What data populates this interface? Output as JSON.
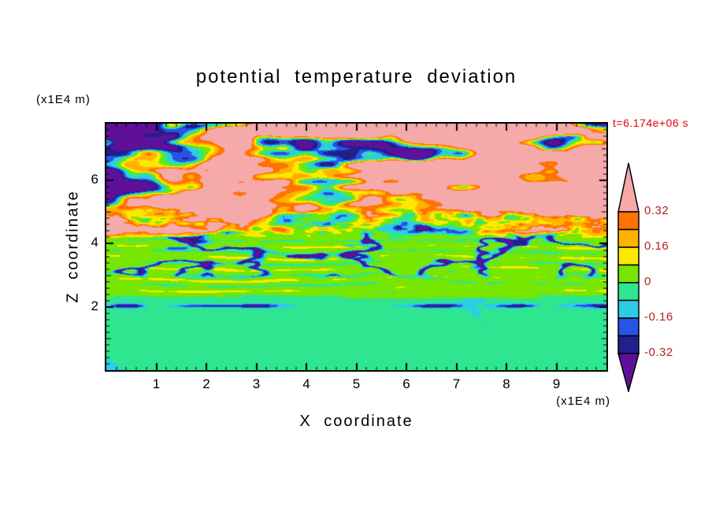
{
  "title": "potential temperature deviation",
  "time_label": "t=6.174e+06 s",
  "axes": {
    "x": {
      "label": "X coordinate",
      "unit": "(x1E4 m)",
      "range": [
        0,
        10
      ],
      "major_ticks": [
        1,
        2,
        3,
        4,
        5,
        6,
        7,
        8,
        9
      ],
      "minor_tick_step": 0.2
    },
    "z": {
      "label": "Z coordinate",
      "unit": "(x1E4 m)",
      "range": [
        0,
        7.8
      ],
      "major_ticks": [
        2,
        4,
        6
      ],
      "minor_tick_step": 0.2
    }
  },
  "colorbar": {
    "labels": [
      "0.32",
      "0.16",
      "0",
      "-0.16",
      "-0.32"
    ],
    "label_color": "#b22222"
  },
  "chart_data": {
    "type": "heatmap",
    "title": "potential temperature deviation",
    "xlabel": "X coordinate",
    "ylabel": "Z coordinate",
    "x_unit": "(x1E4 m)",
    "z_unit": "(x1E4 m)",
    "time_annotation": "t=6.174e+06 s",
    "xlim": [
      0,
      10
    ],
    "zlim": [
      0,
      7.8
    ],
    "levels": [
      -0.32,
      -0.24,
      -0.16,
      -0.08,
      0,
      0.08,
      0.16,
      0.24,
      0.32
    ],
    "palette": [
      "#5f109b",
      "#20208c",
      "#2952e6",
      "#2ecbe6",
      "#2ee68f",
      "#77e600",
      "#ffe800",
      "#ffb300",
      "#ff7300",
      "#f5a9a9"
    ],
    "colorbar_tick_values": [
      0.32,
      0.16,
      0,
      -0.16,
      -0.32
    ],
    "field_bands": [
      {
        "z_range": [
          5.0,
          7.8
        ],
        "description": "large-amplitude wave field: broad alternating patches of strong positive deviation (>0.32, pink) and strong negative deviation (<-0.32, purple), elongated horizontally, with thin multicolored rims at patch boundaries"
      },
      {
        "z_range": [
          4.0,
          5.0
        ],
        "description": "turbulent transition band: fine speckles of orange, red, yellow and cyan/blue deviations mixed with pink and purple patches"
      },
      {
        "z_range": [
          2.3,
          4.0
        ],
        "description": "weakly positive band (0 to 0.08, chartreuse green) with thin horizontal streaks crossing zero and scattered elongated strong-negative blobs (navy/blue)"
      },
      {
        "z_range": [
          0,
          2.3
        ],
        "description": "weakly negative band (-0.08 to 0, spring green) with smooth wavy turquoise patterns (-0.16 to -0.08) and an intermittent dark negative line near z=2"
      }
    ]
  }
}
